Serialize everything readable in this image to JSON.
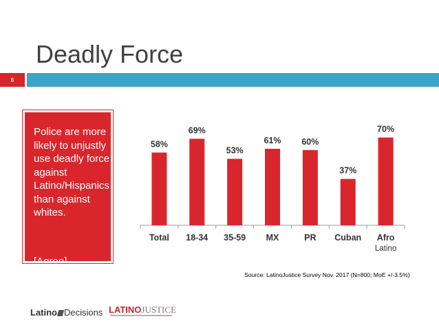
{
  "slide": {
    "title": "Deadly Force",
    "number": "6"
  },
  "callout": {
    "text": "Police are more likely to unjustly use deadly force against Latino/Hispanics than against whites.",
    "agree": "[Agree]"
  },
  "colors": {
    "bar": "#d9262c",
    "accent_blue": "#3aa5c6",
    "axis": "#999999"
  },
  "chart_data": {
    "type": "bar",
    "categories": [
      "Total",
      "18-34",
      "35-59",
      "MX",
      "PR",
      "Cuban",
      "Afro Latino"
    ],
    "values": [
      58,
      69,
      53,
      61,
      60,
      37,
      70
    ],
    "value_labels": [
      "58%",
      "69%",
      "53%",
      "61%",
      "60%",
      "37%",
      "70%"
    ],
    "ylim": [
      0,
      100
    ],
    "grid": false,
    "title": "",
    "xlabel": "",
    "ylabel": ""
  },
  "source": "Source: LatinoJustice Survey Nov. 2017 (N=800; MoE +/-3.5%)",
  "logos": {
    "latino_decisions_a": "Latino",
    "latino_decisions_b": "Decisions",
    "latinojustice_a": "LATINO",
    "latinojustice_b": "JUSTICE"
  }
}
